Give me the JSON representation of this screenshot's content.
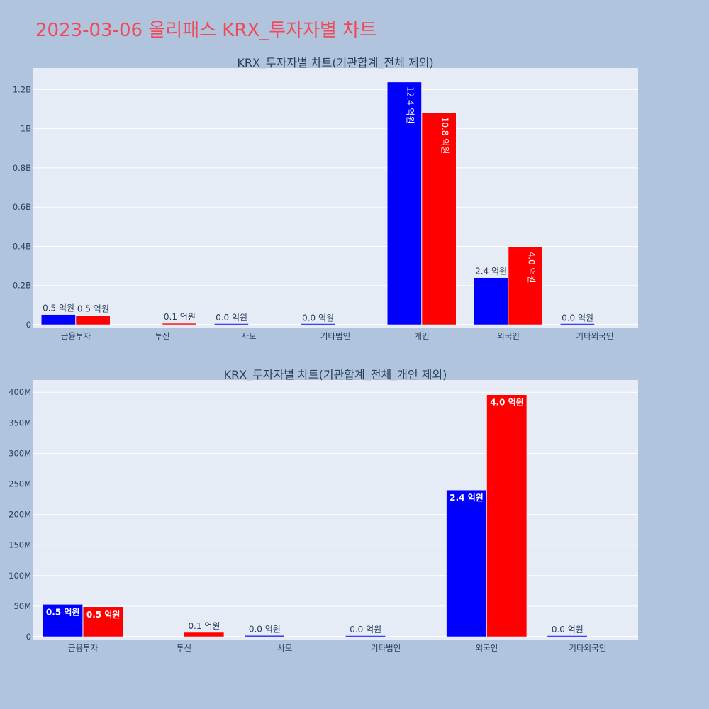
{
  "title": "2023-03-06 올리패스 KRX_투자자별 차트",
  "colors": {
    "series1": "#0000ff",
    "series2": "#ff0000",
    "plot_bg": "#e5ecf6",
    "page_bg": "#b0c4de",
    "title": "#ef4a5a"
  },
  "chart_data": [
    {
      "type": "bar",
      "title": "KRX_투자자별 차트(기관합계_전체 제외)",
      "categories": [
        "금융투자",
        "투신",
        "사모",
        "기타법인",
        "개인",
        "외국인",
        "기타외국인"
      ],
      "series": [
        {
          "color": "#0000ff",
          "values": [
            52000000,
            0,
            3000000,
            1000000,
            1238000000,
            240000000,
            1000000
          ],
          "labels": [
            "0.5 억원",
            "",
            "0.0 억원",
            "0.0 억원",
            "12.4 억원",
            "2.4 억원",
            "0.0 억원"
          ]
        },
        {
          "color": "#ff0000",
          "values": [
            48000000,
            7000000,
            0,
            0,
            1083000000,
            396000000,
            0
          ],
          "labels": [
            "0.5 억원",
            "0.1 억원",
            "",
            "",
            "10.8 억원",
            "4.0 억원",
            ""
          ]
        }
      ],
      "ylim": [
        0,
        1310000000
      ],
      "yticks": [
        {
          "v": 0,
          "label": "0"
        },
        {
          "v": 200000000,
          "label": "0.2B"
        },
        {
          "v": 400000000,
          "label": "0.4B"
        },
        {
          "v": 600000000,
          "label": "0.6B"
        },
        {
          "v": 800000000,
          "label": "0.8B"
        },
        {
          "v": 1000000000,
          "label": "1B"
        },
        {
          "v": 1200000000,
          "label": "1.2B"
        }
      ],
      "grid": true
    },
    {
      "type": "bar",
      "title": "KRX_투자자별 차트(기관합계_전체_개인 제외)",
      "categories": [
        "금융투자",
        "투신",
        "사모",
        "기타법인",
        "외국인",
        "기타외국인"
      ],
      "series": [
        {
          "color": "#0000ff",
          "values": [
            53000000,
            0,
            2000000,
            1000000,
            240000000,
            1000000
          ],
          "labels": [
            "0.5 억원",
            "",
            "0.0 억원",
            "0.0 억원",
            "2.4 억원",
            "0.0 억원"
          ]
        },
        {
          "color": "#ff0000",
          "values": [
            49000000,
            7000000,
            0,
            0,
            396000000,
            0
          ],
          "labels": [
            "0.5 억원",
            "0.1 억원",
            "",
            "",
            "4.0 억원",
            ""
          ]
        }
      ],
      "ylim": [
        0,
        420000000
      ],
      "yticks": [
        {
          "v": 0,
          "label": "0"
        },
        {
          "v": 50000000,
          "label": "50M"
        },
        {
          "v": 100000000,
          "label": "100M"
        },
        {
          "v": 150000000,
          "label": "150M"
        },
        {
          "v": 200000000,
          "label": "200M"
        },
        {
          "v": 250000000,
          "label": "250M"
        },
        {
          "v": 300000000,
          "label": "300M"
        },
        {
          "v": 350000000,
          "label": "350M"
        },
        {
          "v": 400000000,
          "label": "400M"
        }
      ],
      "grid": true
    }
  ]
}
